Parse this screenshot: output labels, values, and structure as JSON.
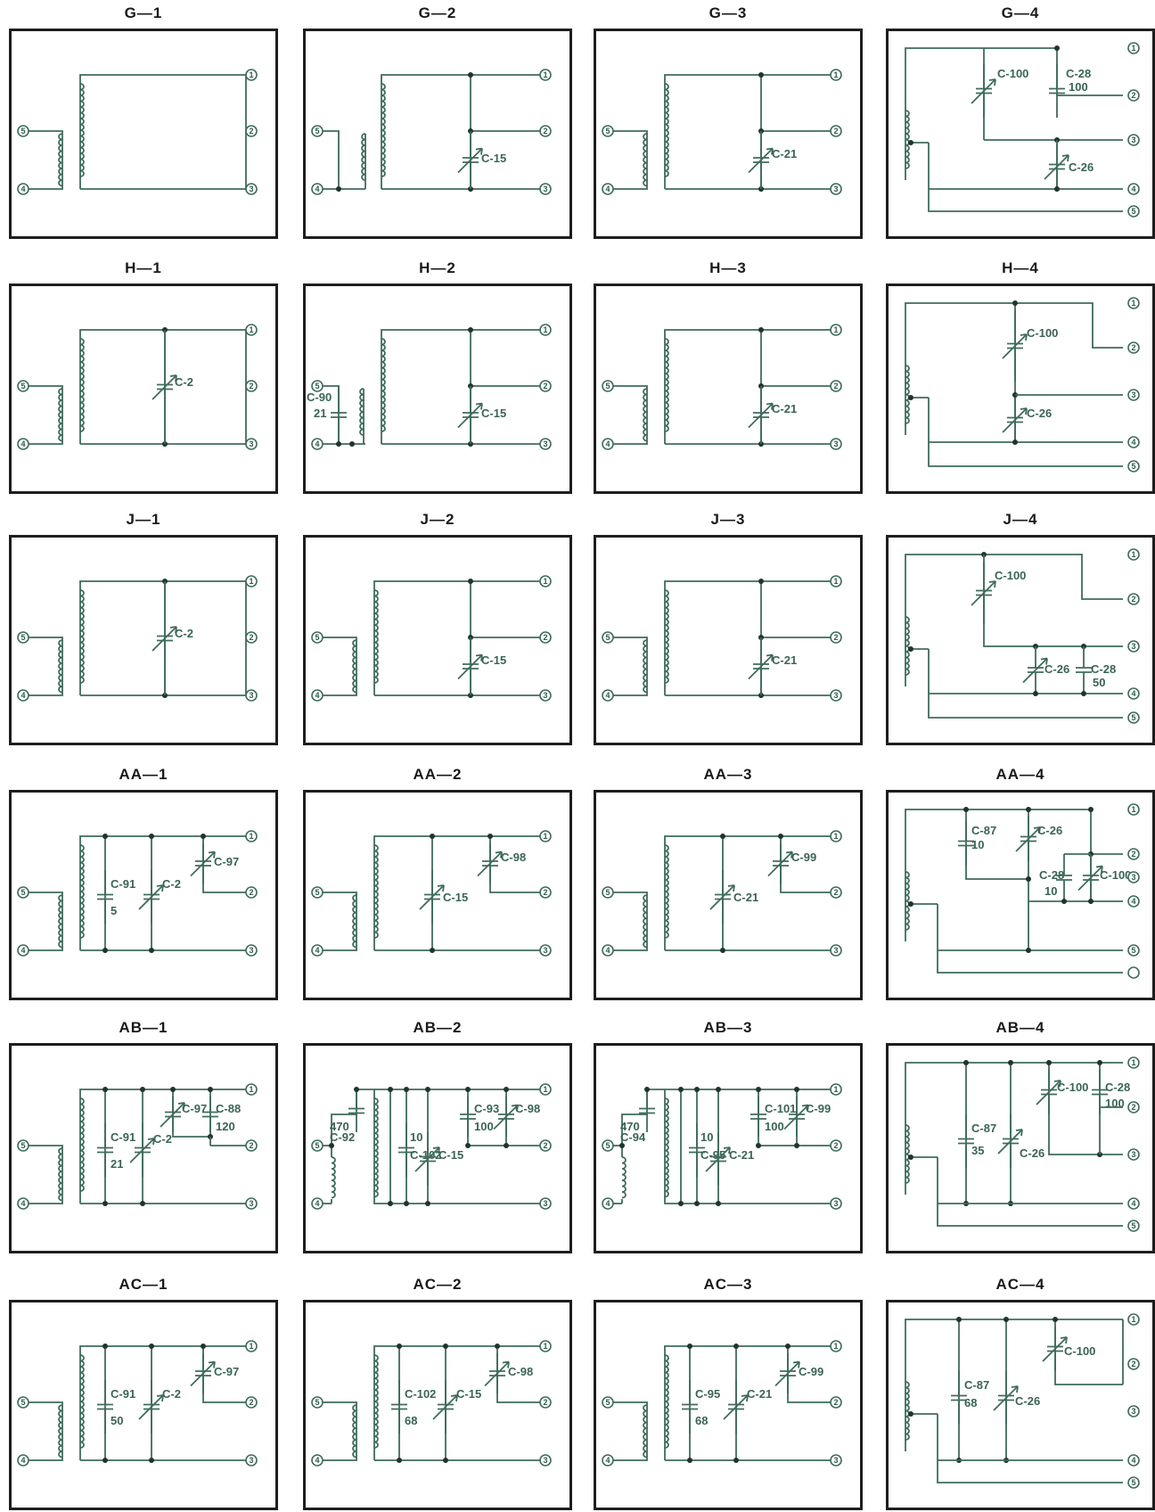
{
  "panels": [
    {
      "title": "G—1",
      "kind": "A",
      "labels": []
    },
    {
      "title": "G—2",
      "kind": "B",
      "labels": [
        "C-15"
      ]
    },
    {
      "title": "G—3",
      "kind": "C",
      "labels": [
        "C-21"
      ]
    },
    {
      "title": "G—4",
      "kind": "D",
      "labels": [
        "C-100",
        "C-28",
        "100",
        "C-26"
      ]
    },
    {
      "title": "H—1",
      "kind": "E",
      "labels": [
        "C-2"
      ]
    },
    {
      "title": "H—2",
      "kind": "F",
      "labels": [
        "C-15",
        "C-90",
        "21"
      ]
    },
    {
      "title": "H—3",
      "kind": "C",
      "labels": [
        "C-21"
      ]
    },
    {
      "title": "H—4",
      "kind": "G",
      "labels": [
        "C-100",
        "C-26"
      ]
    },
    {
      "title": "J—1",
      "kind": "E",
      "labels": [
        "C-2"
      ]
    },
    {
      "title": "J—2",
      "kind": "C",
      "labels": [
        "C-15"
      ]
    },
    {
      "title": "J—3",
      "kind": "C",
      "labels": [
        "C-21"
      ]
    },
    {
      "title": "J—4",
      "kind": "H",
      "labels": [
        "C-100",
        "C-26",
        "C-28",
        "50"
      ]
    },
    {
      "title": "AA—1",
      "kind": "I",
      "labels": [
        "C-91",
        "5",
        "C-2",
        "C-97"
      ]
    },
    {
      "title": "AA—2",
      "kind": "J",
      "labels": [
        "C-15",
        "C-98"
      ]
    },
    {
      "title": "AA—3",
      "kind": "J",
      "labels": [
        "C-21",
        "C-99"
      ]
    },
    {
      "title": "AA—4",
      "kind": "K",
      "labels": [
        "C-87",
        "10",
        "C-26",
        "C-28",
        "10",
        "C-100"
      ]
    },
    {
      "title": "AB—1",
      "kind": "L",
      "labels": [
        "C-91",
        "21",
        "C-2",
        "C-97",
        "C-88",
        "120"
      ]
    },
    {
      "title": "AB—2",
      "kind": "M",
      "labels": [
        "470",
        "C-92",
        "C-102",
        "10",
        "C-15",
        "C-93",
        "100",
        "C-98"
      ]
    },
    {
      "title": "AB—3",
      "kind": "M",
      "labels": [
        "470",
        "C-94",
        "C-95",
        "10",
        "C-21",
        "C-101",
        "100",
        "C-99"
      ]
    },
    {
      "title": "AB—4",
      "kind": "N",
      "labels": [
        "C-87",
        "35",
        "C-26",
        "C-100",
        "C-28",
        "100"
      ]
    },
    {
      "title": "AC—1",
      "kind": "I",
      "labels": [
        "C-91",
        "50",
        "C-2",
        "C-97"
      ]
    },
    {
      "title": "AC—2",
      "kind": "I",
      "labels": [
        "C-102",
        "68",
        "C-15",
        "C-98"
      ]
    },
    {
      "title": "AC—3",
      "kind": "I",
      "labels": [
        "C-95",
        "68",
        "C-21",
        "C-99"
      ]
    },
    {
      "title": "AC—4",
      "kind": "O",
      "labels": [
        "C-87",
        "68",
        "C-26",
        "C-100"
      ]
    }
  ],
  "terminal_numbers": [
    "1",
    "2",
    "3",
    "4",
    "5"
  ]
}
